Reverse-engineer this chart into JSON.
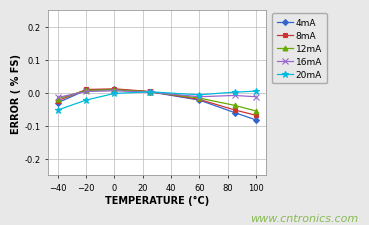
{
  "title": "",
  "xlabel": "TEMPERATURE (°C)",
  "ylabel": "ERROR ( % FS)",
  "watermark": "www.cntronics.com",
  "xlim": [
    -47,
    107
  ],
  "ylim": [
    -0.25,
    0.25
  ],
  "yticks": [
    -0.2,
    -0.1,
    0.0,
    0.1,
    0.2
  ],
  "xticks": [
    -40,
    -20,
    0,
    20,
    40,
    60,
    80,
    100
  ],
  "series": [
    {
      "label": "4mA",
      "color": "#3366CC",
      "marker": "D",
      "markersize": 3,
      "x": [
        -40,
        -20,
        0,
        25,
        60,
        85,
        100
      ],
      "y": [
        -0.03,
        0.008,
        0.01,
        0.003,
        -0.022,
        -0.06,
        -0.082
      ]
    },
    {
      "label": "8mA",
      "color": "#CC3333",
      "marker": "s",
      "markersize": 3,
      "x": [
        -40,
        -20,
        0,
        25,
        60,
        85,
        100
      ],
      "y": [
        -0.024,
        0.01,
        0.012,
        0.004,
        -0.02,
        -0.052,
        -0.068
      ]
    },
    {
      "label": "12mA",
      "color": "#66AA00",
      "marker": "^",
      "markersize": 3.5,
      "x": [
        -40,
        -20,
        0,
        25,
        60,
        85,
        100
      ],
      "y": [
        -0.018,
        0.007,
        0.009,
        0.003,
        -0.016,
        -0.038,
        -0.055
      ]
    },
    {
      "label": "16mA",
      "color": "#9966CC",
      "marker": "x",
      "markersize": 4,
      "x": [
        -40,
        -20,
        0,
        25,
        60,
        85,
        100
      ],
      "y": [
        -0.014,
        0.004,
        0.006,
        0.002,
        -0.012,
        -0.008,
        -0.012
      ]
    },
    {
      "label": "20mA",
      "color": "#00BBDD",
      "marker": "*",
      "markersize": 5,
      "x": [
        -40,
        -20,
        0,
        25,
        60,
        85,
        100
      ],
      "y": [
        -0.052,
        -0.022,
        -0.002,
        0.003,
        -0.006,
        0.002,
        0.005
      ]
    }
  ],
  "background_color": "#e8e8e8",
  "plot_bg_color": "#ffffff",
  "grid_color": "#bbbbbb",
  "watermark_color": "#88bb55",
  "watermark_fontsize": 8,
  "legend_fontsize": 6.5,
  "axis_label_fontsize": 7,
  "tick_fontsize": 6
}
